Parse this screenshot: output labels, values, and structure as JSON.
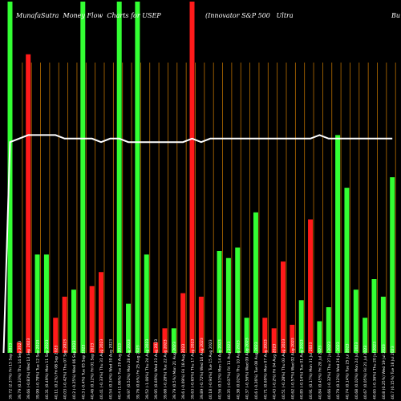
{
  "header": {
    "title_left": "MunafaSutra  Money Flow  Charts for USEP",
    "title_right": "(Innovator S&P 500   Ultra",
    "title_edge": "Bu"
  },
  "colors": {
    "background": "#000000",
    "up": "#33ff33",
    "down": "#ff1a1a",
    "grid": "#b86e00",
    "line": "#ffffff"
  },
  "chart_data": {
    "type": "bar",
    "grid": true,
    "ylim": [
      0,
      100
    ],
    "categories": [
      "Fri 15 Sep 2023",
      "Thu 14 Sep 2023",
      "Wed 13 Sep 2023",
      "Tue 12 Sep 2023",
      "Mon 11 Sep 2023",
      "Fri 08 Sep 2023",
      "Thu 07 Sep 2023",
      "Wed 06 Sep 2023",
      "Tue 05 Sep 2023",
      "Fri 01 Sep 2023",
      "Thu 31 Aug 2023",
      "Wed 30 Aug 2023",
      "Tue 29 Aug 2023",
      "Mon 28 Aug 2023",
      "Fri 25 Aug 2023",
      "Thu 24 Aug 2023",
      "Wed 23 Aug 2023",
      "Tue 22 Aug 2023",
      "Mon 21 Aug 2023",
      "Fri 18 Aug 2023",
      "Thu 17 Aug 2023",
      "Wed 16 Aug 2023",
      "Tue 15 Aug 2023",
      "Mon 14 Aug 2023",
      "Fri 11 Aug 2023",
      "Thu 10 Aug 2023",
      "Wed 09 Aug 2023",
      "Tue 08 Aug 2023",
      "Mon 07 Aug 2023",
      "Fri 04 Aug 2023",
      "Thu 03 Aug 2023",
      "Wed 02 Aug 2023",
      "Tue 01 Aug 2023",
      "Mon 31 Jul 2023",
      "Fri 28 Jul 2023",
      "Thu 27 Jul 2023",
      "Wed 26 Jul 2023",
      "Tue 25 Jul 2023",
      "Mon 24 Jul 2023",
      "Fri 21 Jul 2023",
      "Thu 20 Jul 2023",
      "Wed 19 Jul 2023",
      "Tue 18 Jul 2023"
    ],
    "tick_labels": [
      "39.72 (2.37%)",
      "39.79 (0.33%)",
      "39.66 (-0.83%)",
      "39.99 (-0.78%)",
      "40.31 (0.49%)",
      "40.11 (0.2%)",
      "40.03 (-0.42%)",
      "40.2 (-0.25%)",
      "40.3 (-0.4%)",
      "40.46 (0.12%)",
      "40.41 (-0.33%)",
      "40.54 (0.34%)",
      "40.4 (1.06%)",
      "39.97 (0.52%)",
      "39.76 (0.6%)",
      "39.52 (-1.06%)",
      "39.95 (0.69%)",
      "39.68 (-0.28%)",
      "39.79 (0.5%)",
      "39.6 (-0.09%)",
      "39.63 (-0.65%)",
      "39.89 (-0.72%)",
      "40.18 (-0.94%)",
      "40.56 (0.51%)",
      "40.35 (-0.07%)",
      "40.38 (0.02%)",
      "40.37 (-0.56%)",
      "40.6 (-0.26%)",
      "40.71 (0.69%)",
      "40.43 (-0.2%)",
      "40.51 (-0.28%)",
      "40.62 (-0.57%)",
      "40.85 (-0.14%)",
      "40.91 (0.17%)",
      "40.84 (0.45%)",
      "40.66 (-0.32%)",
      "40.79 (0.12%)",
      "40.74 (0.14%)",
      "40.68 (0.02%)",
      "40.67 (0.05%)",
      "40.65 (-0.36%)",
      "40.8 (0.25%)",
      "40.7 (0.15%)"
    ],
    "series": [
      {
        "values": [
          100,
          3,
          85,
          28,
          28,
          10,
          16,
          18,
          100,
          19,
          23,
          0,
          100,
          14,
          100,
          28,
          3,
          7,
          7,
          17,
          100,
          16,
          0,
          29,
          27,
          30,
          10,
          40,
          10,
          7,
          26,
          8,
          15,
          38,
          9,
          13,
          62,
          47,
          18,
          10,
          21,
          16,
          50
        ],
        "directions": [
          "up",
          "down",
          "down",
          "up",
          "up",
          "down",
          "down",
          "up",
          "up",
          "down",
          "down",
          "down",
          "up",
          "up",
          "up",
          "up",
          "down",
          "down",
          "up",
          "down",
          "down",
          "down",
          "up",
          "up",
          "up",
          "up",
          "up",
          "up",
          "down",
          "down",
          "down",
          "down",
          "up",
          "down",
          "up",
          "up",
          "up",
          "up",
          "up",
          "up",
          "up",
          "up",
          "up"
        ]
      },
      {
        "type": "line",
        "values": [
          60,
          61,
          62,
          62,
          62,
          62,
          61,
          61,
          61,
          61,
          60,
          61,
          61,
          60,
          60,
          60,
          60,
          60,
          60,
          60,
          61,
          60,
          61,
          61,
          61,
          61,
          61,
          61,
          61,
          61,
          61,
          61,
          61,
          61,
          62,
          61,
          61,
          61,
          61,
          61,
          61,
          61,
          61
        ]
      }
    ]
  }
}
